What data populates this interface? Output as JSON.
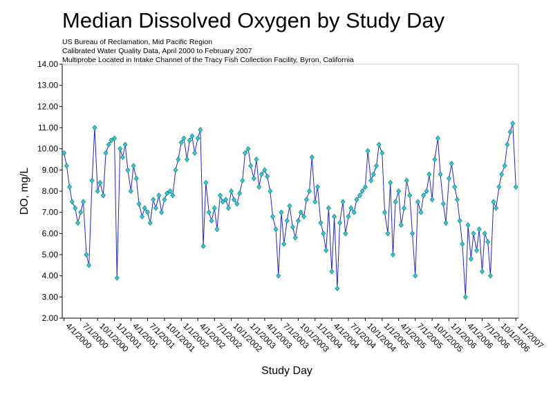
{
  "chart_data": {
    "type": "line",
    "title": "Median Dissolved Oxygen by Study Day",
    "subtitle": [
      "US Bureau of Reclamation, Mid Pacific Region",
      "Calibrated Water Quality Data, April 2000 to February 2007",
      "Multiprobe Located in Intake Channel of the Tracy Fish Collection Facility, Byron, California"
    ],
    "x_label": "Study Day",
    "y_label": "DO, mg/L",
    "color": "#2020d8",
    "marker_color": "#33cccc",
    "xlim": [
      "3/22/2000",
      "1/15/2007"
    ],
    "ylim": [
      2,
      14
    ],
    "yticks": [
      {
        "value": 2,
        "label": "2.00"
      },
      {
        "value": 3,
        "label": "3.00"
      },
      {
        "value": 4,
        "label": "4.00"
      },
      {
        "value": 5,
        "label": "5.00"
      },
      {
        "value": 6,
        "label": "6.00"
      },
      {
        "value": 7,
        "label": "7.00"
      },
      {
        "value": 8,
        "label": "8.00"
      },
      {
        "value": 9,
        "label": "9.00"
      },
      {
        "value": 10,
        "label": "10.00"
      },
      {
        "value": 11,
        "label": "11.00"
      },
      {
        "value": 12,
        "label": "12.00"
      },
      {
        "value": 13,
        "label": "13.00"
      },
      {
        "value": 14,
        "label": "14.00"
      }
    ],
    "xticks": [
      "4/1/2000",
      "7/1/2000",
      "10/1/2000",
      "1/1/2001",
      "4/1/2001",
      "7/1/2001",
      "10/1/2001",
      "1/1/2002",
      "4/1/2002",
      "7/1/2002",
      "10/1/2002",
      "1/1/2003",
      "4/1/2003",
      "7/1/2003",
      "10/1/2003",
      "1/1/2004",
      "4/1/2004",
      "7/1/2004",
      "10/1/2004",
      "1/1/2005",
      "4/1/2005",
      "7/1/2005",
      "10/1/2005",
      "1/1/2006",
      "4/1/2006",
      "7/1/2006",
      "10/1/2006",
      "1/1/2007"
    ],
    "x": [
      "4/1/2000",
      "4/15/2000",
      "5/1/2000",
      "5/15/2000",
      "6/1/2000",
      "6/15/2000",
      "7/1/2000",
      "7/15/2000",
      "8/1/2000",
      "8/15/2000",
      "9/1/2000",
      "9/15/2000",
      "10/1/2000",
      "10/15/2000",
      "11/1/2000",
      "11/15/2000",
      "12/1/2000",
      "12/15/2000",
      "1/1/2001",
      "1/15/2001",
      "2/1/2001",
      "2/15/2001",
      "3/1/2001",
      "3/15/2001",
      "4/1/2001",
      "4/15/2001",
      "5/1/2001",
      "5/15/2001",
      "6/1/2001",
      "6/15/2001",
      "7/1/2001",
      "7/15/2001",
      "8/1/2001",
      "8/15/2001",
      "9/1/2001",
      "9/15/2001",
      "10/1/2001",
      "10/15/2001",
      "11/1/2001",
      "11/15/2001",
      "12/1/2001",
      "12/15/2001",
      "1/1/2002",
      "1/15/2002",
      "2/1/2002",
      "2/15/2002",
      "3/1/2002",
      "3/15/2002",
      "4/1/2002",
      "4/15/2002",
      "5/1/2002",
      "5/15/2002",
      "6/1/2002",
      "6/15/2002",
      "7/1/2002",
      "7/15/2002",
      "8/1/2002",
      "8/15/2002",
      "9/1/2002",
      "9/15/2002",
      "10/1/2002",
      "10/15/2002",
      "11/1/2002",
      "11/15/2002",
      "12/1/2002",
      "12/15/2002",
      "1/1/2003",
      "1/15/2003",
      "2/1/2003",
      "2/15/2003",
      "3/1/2003",
      "3/15/2003",
      "4/1/2003",
      "4/15/2003",
      "5/1/2003",
      "5/15/2003",
      "6/1/2003",
      "6/15/2003",
      "7/1/2003",
      "7/15/2003",
      "8/1/2003",
      "8/15/2003",
      "9/1/2003",
      "9/15/2003",
      "10/1/2003",
      "10/15/2003",
      "11/1/2003",
      "11/15/2003",
      "12/1/2003",
      "12/15/2003",
      "1/1/2004",
      "1/15/2004",
      "2/1/2004",
      "2/15/2004",
      "3/1/2004",
      "3/15/2004",
      "4/1/2004",
      "4/15/2004",
      "5/1/2004",
      "5/15/2004",
      "6/1/2004",
      "6/15/2004",
      "7/1/2004",
      "7/15/2004",
      "8/1/2004",
      "8/15/2004",
      "9/1/2004",
      "9/15/2004",
      "10/1/2004",
      "10/15/2004",
      "11/1/2004",
      "11/15/2004",
      "12/1/2004",
      "12/15/2004",
      "1/1/2005",
      "1/15/2005",
      "2/1/2005",
      "2/15/2005",
      "3/1/2005",
      "3/15/2005",
      "4/1/2005",
      "4/15/2005",
      "5/1/2005",
      "5/15/2005",
      "6/1/2005",
      "6/15/2005",
      "7/1/2005",
      "7/15/2005",
      "8/1/2005",
      "8/15/2005",
      "9/1/2005",
      "9/15/2005",
      "10/1/2005",
      "10/15/2005",
      "11/1/2005",
      "11/15/2005",
      "12/1/2005",
      "12/15/2005",
      "1/1/2006",
      "1/15/2006",
      "2/1/2006",
      "2/15/2006",
      "3/1/2006",
      "3/15/2006",
      "4/1/2006",
      "4/15/2006",
      "5/1/2006",
      "5/15/2006",
      "6/1/2006",
      "6/15/2006",
      "7/1/2006",
      "7/15/2006",
      "8/1/2006",
      "8/15/2006",
      "9/1/2006",
      "9/15/2006",
      "10/1/2006",
      "10/15/2006",
      "11/1/2006",
      "11/15/2006",
      "12/1/2006",
      "12/15/2006",
      "1/1/2007"
    ],
    "values": [
      9.8,
      9.2,
      8.2,
      7.5,
      7.2,
      6.5,
      7.0,
      7.5,
      5.0,
      4.5,
      8.5,
      11.0,
      8.0,
      8.4,
      7.8,
      9.8,
      10.2,
      10.4,
      10.5,
      3.9,
      10.0,
      9.6,
      10.2,
      9.0,
      8.0,
      9.2,
      8.6,
      7.4,
      6.8,
      7.2,
      7.0,
      6.5,
      7.6,
      7.2,
      7.8,
      7.0,
      7.6,
      7.9,
      8.0,
      7.8,
      9.0,
      9.5,
      10.3,
      10.5,
      9.5,
      10.4,
      10.6,
      9.8,
      10.5,
      10.9,
      5.4,
      8.4,
      7.0,
      6.6,
      7.2,
      6.2,
      7.8,
      7.5,
      7.6,
      7.2,
      8.0,
      7.6,
      7.4,
      7.9,
      8.5,
      9.8,
      10.0,
      9.2,
      8.6,
      9.5,
      8.2,
      8.8,
      9.0,
      8.7,
      8.0,
      6.8,
      6.2,
      4.0,
      7.0,
      5.5,
      6.6,
      7.3,
      6.3,
      5.8,
      6.6,
      7.0,
      6.8,
      7.6,
      8.0,
      9.6,
      7.5,
      8.2,
      6.5,
      6.0,
      5.2,
      7.2,
      4.2,
      6.8,
      3.4,
      6.5,
      7.5,
      6.0,
      6.8,
      7.2,
      7.0,
      7.6,
      7.8,
      8.0,
      8.2,
      9.9,
      8.5,
      8.8,
      9.2,
      10.2,
      9.8,
      7.0,
      6.0,
      8.4,
      5.0,
      7.5,
      8.0,
      6.4,
      7.2,
      8.5,
      7.8,
      6.0,
      4.0,
      7.5,
      7.0,
      7.8,
      8.0,
      8.8,
      7.6,
      9.5,
      10.5,
      8.8,
      7.4,
      6.5,
      8.6,
      9.3,
      8.2,
      7.6,
      6.6,
      5.5,
      3.0,
      6.4,
      4.8,
      6.0,
      5.2,
      6.2,
      4.2,
      6.0,
      5.6,
      4.0,
      7.5,
      7.2,
      8.2,
      8.8,
      9.2,
      10.2,
      10.8,
      11.2,
      8.2
    ]
  }
}
